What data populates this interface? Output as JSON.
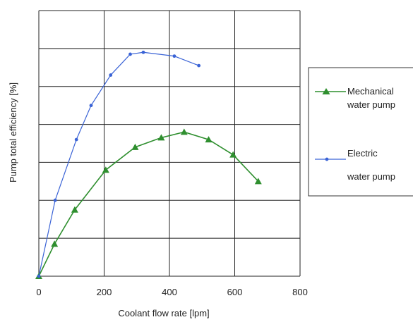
{
  "chart_data": {
    "type": "line",
    "xlabel": "Coolant flow rate [lpm]",
    "ylabel": "Pump total efficiency [%]",
    "xlim": [
      0,
      800
    ],
    "ylim": [
      0,
      7
    ],
    "x_ticks": [
      "0",
      "200",
      "400",
      "600",
      "800"
    ],
    "y_tick_labels_shown": false,
    "grid": true,
    "legend_position": "right",
    "series": [
      {
        "name": "Mechanical water pump",
        "legend_lines": [
          "Mechanical",
          "water pump"
        ],
        "color": "#2f8f2f",
        "marker": "triangle",
        "points": [
          [
            0,
            0
          ],
          [
            48,
            0.85
          ],
          [
            110,
            1.75
          ],
          [
            205,
            2.8
          ],
          [
            295,
            3.4
          ],
          [
            375,
            3.65
          ],
          [
            445,
            3.8
          ],
          [
            520,
            3.6
          ],
          [
            595,
            3.2
          ],
          [
            672,
            2.5
          ]
        ]
      },
      {
        "name": "Electric water pump",
        "legend_lines": [
          "Electric",
          "water pump"
        ],
        "color": "#3a63d6",
        "marker": "dot",
        "points": [
          [
            0,
            0
          ],
          [
            50,
            2.0
          ],
          [
            115,
            3.6
          ],
          [
            160,
            4.5
          ],
          [
            220,
            5.3
          ],
          [
            280,
            5.85
          ],
          [
            320,
            5.9
          ],
          [
            415,
            5.8
          ],
          [
            490,
            5.55
          ]
        ]
      }
    ]
  }
}
